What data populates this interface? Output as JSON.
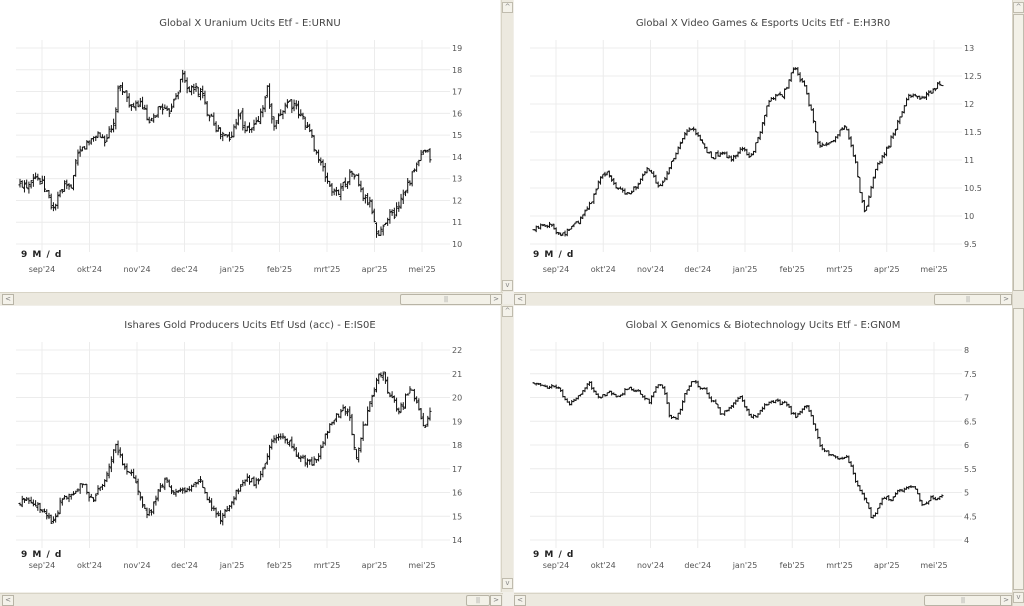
{
  "period_label": "9 M / d",
  "x_months": [
    "sep'24",
    "okt'24",
    "nov'24",
    "dec'24",
    "jan'25",
    "feb'25",
    "mrt'25",
    "apr'25",
    "mei'25"
  ],
  "colors": {
    "bars": "#111111",
    "grid": "#ececec",
    "axis_text": "#555555",
    "background": "#ffffff"
  },
  "chart_data": [
    {
      "type": "ohlc",
      "title": "Global X Uranium Ucits Etf - E:URNU",
      "ylim": [
        10,
        19
      ],
      "yticks": [
        "10",
        "11",
        "12",
        "13",
        "14",
        "15",
        "16",
        "17",
        "18",
        "19"
      ],
      "ytick_values": [
        10,
        11,
        12,
        13,
        14,
        15,
        16,
        17,
        18,
        19
      ],
      "xlabels": [
        "sep'24",
        "okt'24",
        "nov'24",
        "dec'24",
        "jan'25",
        "feb'25",
        "mrt'25",
        "apr'25",
        "mei'25"
      ],
      "close_path": [
        12.7,
        12.8,
        12.7,
        13.2,
        13.1,
        12.9,
        12.6,
        12.2,
        11.6,
        11.9,
        12.4,
        12.6,
        12.5,
        12.9,
        13.9,
        14.3,
        14.5,
        14.7,
        14.9,
        15.1,
        14.9,
        14.8,
        15.1,
        15.3,
        16.9,
        17.3,
        16.8,
        16.5,
        16.1,
        16.5,
        16.4,
        15.9,
        15.4,
        15.8,
        16.2,
        16.4,
        15.9,
        16.2,
        16.8,
        17.1,
        17.8,
        17.3,
        17.0,
        17.2,
        17.0,
        16.8,
        16.1,
        16.0,
        15.5,
        15.1,
        15.0,
        14.9,
        14.8,
        15.6,
        16.2,
        15.4,
        15.2,
        15.3,
        15.5,
        15.8,
        16.4,
        17.2,
        15.6,
        15.3,
        15.9,
        16.3,
        16.6,
        16.4,
        16.2,
        15.9,
        15.7,
        15.3,
        14.8,
        14.2,
        13.7,
        13.2,
        12.8,
        12.4,
        12.3,
        12.6,
        12.8,
        13.1,
        13.3,
        13.0,
        12.4,
        12.0,
        11.9,
        11.4,
        10.3,
        10.6,
        11.1,
        11.4,
        11.3,
        11.7,
        12.2,
        12.6,
        12.9,
        13.3,
        13.7,
        14.1,
        14.2,
        14.0
      ],
      "day_range": [
        0.45,
        0.2
      ]
    },
    {
      "type": "ohlc",
      "title": "Global X Video Games & Esports Ucits Etf - E:H3R0",
      "ylim": [
        9.5,
        13
      ],
      "yticks": [
        "9.5",
        "10",
        "10.5",
        "11",
        "11.5",
        "12",
        "12.5",
        "13"
      ],
      "ytick_values": [
        9.5,
        10,
        10.5,
        11,
        11.5,
        12,
        12.5,
        13
      ],
      "xlabels": [
        "sep'24",
        "okt'24",
        "nov'24",
        "dec'24",
        "jan'25",
        "feb'25",
        "mrt'25",
        "apr'25",
        "mei'25"
      ],
      "close_path": [
        9.75,
        9.8,
        9.85,
        9.84,
        9.82,
        9.72,
        9.68,
        9.7,
        9.8,
        9.86,
        9.92,
        10.05,
        10.2,
        10.35,
        10.6,
        10.75,
        10.78,
        10.65,
        10.5,
        10.45,
        10.42,
        10.44,
        10.5,
        10.6,
        10.75,
        10.85,
        10.7,
        10.5,
        10.6,
        10.8,
        10.95,
        11.1,
        11.3,
        11.45,
        11.55,
        11.5,
        11.4,
        11.25,
        11.1,
        11.05,
        11.1,
        11.15,
        11.05,
        11.0,
        11.1,
        11.2,
        11.15,
        11.05,
        11.2,
        11.4,
        11.7,
        12.0,
        12.1,
        12.2,
        12.1,
        12.3,
        12.5,
        12.65,
        12.45,
        12.3,
        12.0,
        11.7,
        11.3,
        11.25,
        11.3,
        11.35,
        11.4,
        11.55,
        11.6,
        11.3,
        11.0,
        10.5,
        10.05,
        10.3,
        10.7,
        10.95,
        11.05,
        11.2,
        11.4,
        11.6,
        11.8,
        12.0,
        12.15,
        12.2,
        12.05,
        12.1,
        12.2,
        12.25,
        12.35,
        12.3
      ],
      "day_range": [
        0.08,
        0.04
      ]
    },
    {
      "type": "ohlc",
      "title": "Ishares Gold Producers Ucits Etf Usd (acc) - E:IS0E",
      "ylim": [
        14,
        22
      ],
      "yticks": [
        "14",
        "15",
        "16",
        "17",
        "18",
        "19",
        "20",
        "21",
        "22"
      ],
      "ytick_values": [
        14,
        15,
        16,
        17,
        18,
        19,
        20,
        21,
        22
      ],
      "xlabels": [
        "sep'24",
        "okt'24",
        "nov'24",
        "dec'24",
        "jan'25",
        "feb'25",
        "mrt'25",
        "apr'25",
        "mei'25"
      ],
      "close_path": [
        15.5,
        15.8,
        15.7,
        15.6,
        15.4,
        15.3,
        15.0,
        14.8,
        15.1,
        15.8,
        15.9,
        15.9,
        16.1,
        16.3,
        16.2,
        15.9,
        15.6,
        16.1,
        16.4,
        16.9,
        17.5,
        18.0,
        17.3,
        17.1,
        16.8,
        16.4,
        16.0,
        15.3,
        15.0,
        15.6,
        16.0,
        16.3,
        16.6,
        15.9,
        16.1,
        16.2,
        15.9,
        16.3,
        16.4,
        16.7,
        16.1,
        15.6,
        15.2,
        14.9,
        15.0,
        15.4,
        15.7,
        16.0,
        16.3,
        16.5,
        16.6,
        16.4,
        16.6,
        17.2,
        17.8,
        18.2,
        18.5,
        18.3,
        18.2,
        17.9,
        17.6,
        17.4,
        17.3,
        17.2,
        17.4,
        17.6,
        18.2,
        18.8,
        19.1,
        19.3,
        19.4,
        19.6,
        18.7,
        17.3,
        18.4,
        19.0,
        19.8,
        20.4,
        21.1,
        20.9,
        20.2,
        19.9,
        19.5,
        19.6,
        20.2,
        20.4,
        19.9,
        19.2,
        18.7,
        19.4
      ],
      "day_range": [
        0.35,
        0.15
      ]
    },
    {
      "type": "ohlc",
      "title": "Global X Genomics & Biotechnology Ucits Etf - E:GN0M",
      "ylim": [
        4,
        8
      ],
      "yticks": [
        "4",
        "4.5",
        "5",
        "5.5",
        "6",
        "6.5",
        "7",
        "7.5",
        "8"
      ],
      "ytick_values": [
        4,
        4.5,
        5,
        5.5,
        6,
        6.5,
        7,
        7.5,
        8
      ],
      "xlabels": [
        "sep'24",
        "okt'24",
        "nov'24",
        "dec'24",
        "jan'25",
        "feb'25",
        "mrt'25",
        "apr'25",
        "mei'25"
      ],
      "close_path": [
        7.3,
        7.3,
        7.25,
        7.2,
        7.25,
        7.2,
        6.95,
        6.85,
        6.95,
        7.05,
        7.2,
        7.3,
        7.1,
        7.0,
        7.05,
        7.1,
        7.05,
        7.0,
        7.15,
        7.2,
        7.15,
        7.1,
        7.0,
        6.9,
        7.2,
        7.3,
        7.1,
        6.55,
        6.55,
        6.7,
        7.1,
        7.3,
        7.35,
        7.2,
        7.15,
        6.95,
        6.9,
        6.65,
        6.7,
        6.8,
        6.95,
        7.05,
        6.75,
        6.6,
        6.6,
        6.75,
        6.85,
        6.9,
        6.95,
        6.85,
        6.9,
        6.7,
        6.6,
        6.75,
        6.85,
        6.6,
        6.3,
        5.9,
        5.85,
        5.8,
        5.75,
        5.7,
        5.75,
        5.55,
        5.2,
        5.0,
        4.8,
        4.45,
        4.6,
        4.85,
        4.9,
        4.8,
        5.05,
        5.05,
        5.1,
        5.15,
        5.0,
        4.75,
        4.8,
        4.9,
        4.85,
        4.95
      ],
      "day_range": [
        0.07,
        0.03
      ]
    }
  ]
}
